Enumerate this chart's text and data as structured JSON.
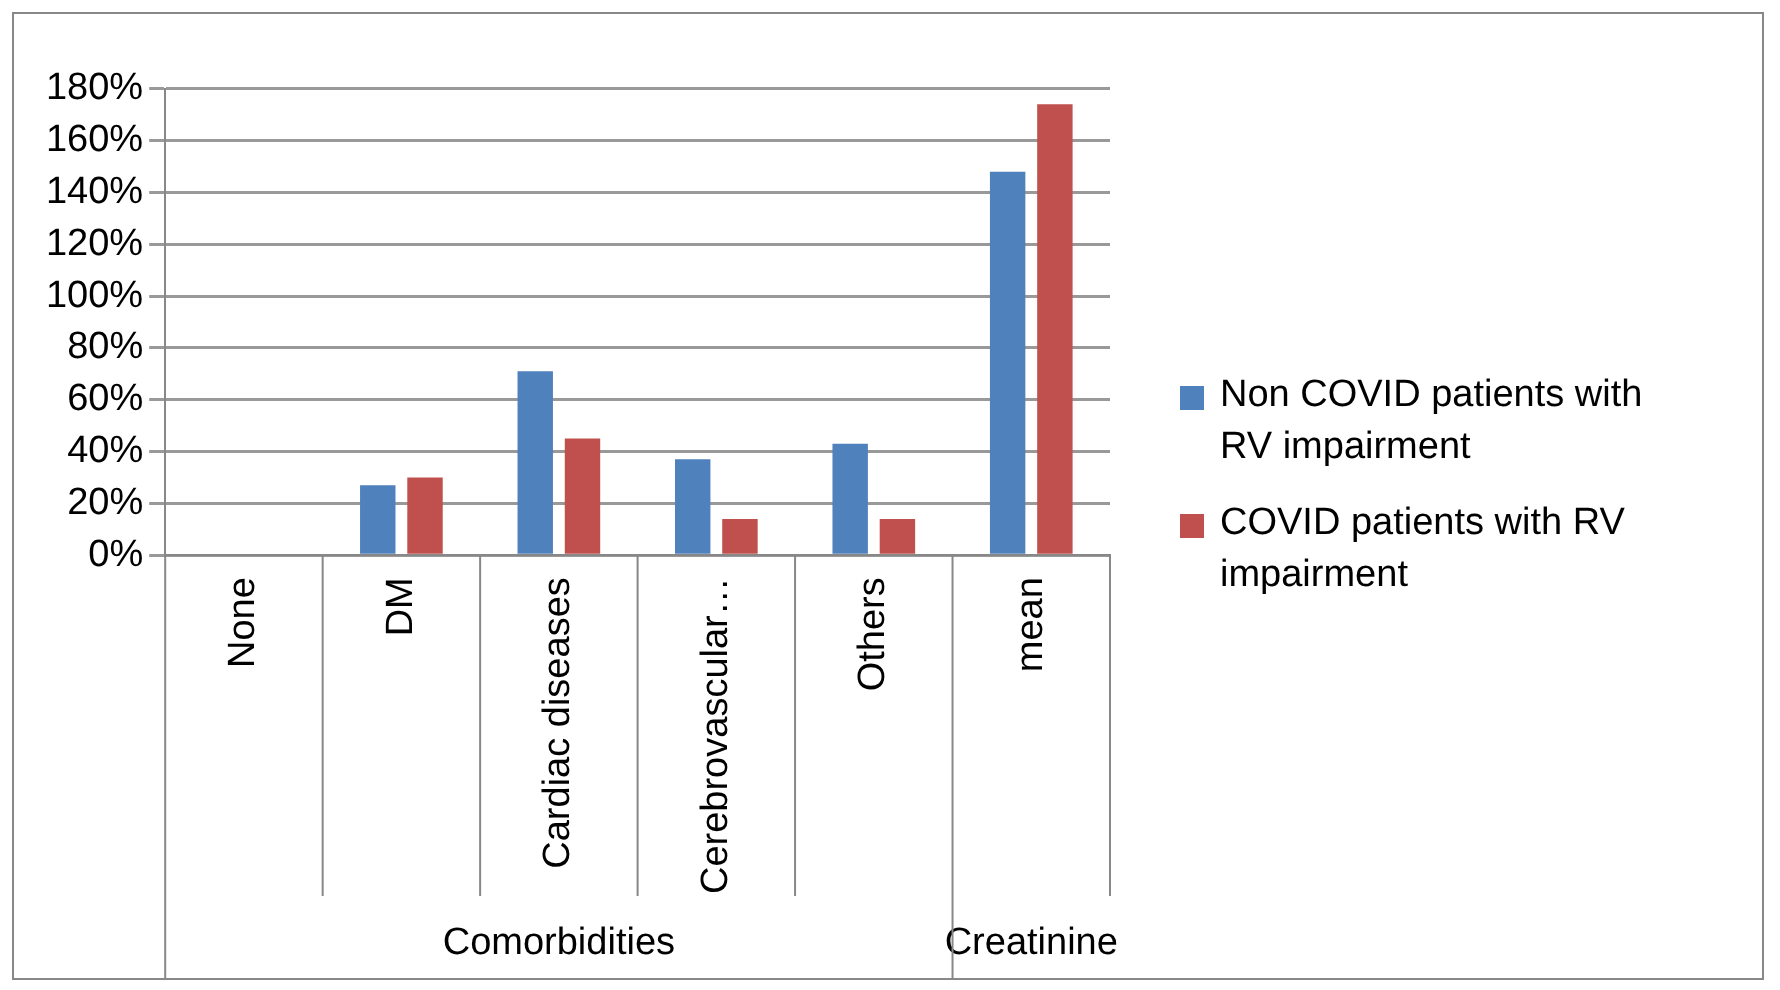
{
  "chart_data": {
    "type": "bar",
    "categories": [
      "None",
      "DM",
      "Cardiac diseases",
      "Cerebrovascular…",
      "Others",
      "mean"
    ],
    "series": [
      {
        "name": "Non COVID patients with RV impairment",
        "color": "#4f81bd",
        "values": [
          0,
          27,
          71,
          37,
          43,
          148
        ]
      },
      {
        "name": "COVID patients with RV impairment",
        "color": "#c0504d",
        "values": [
          0,
          30,
          45,
          14,
          14,
          174
        ]
      }
    ],
    "ylim": [
      0,
      180
    ],
    "yticks": [
      {
        "value": 0,
        "label": "0%"
      },
      {
        "value": 20,
        "label": "20%"
      },
      {
        "value": 40,
        "label": "40%"
      },
      {
        "value": 60,
        "label": "60%"
      },
      {
        "value": 80,
        "label": "80%"
      },
      {
        "value": 100,
        "label": "100%"
      },
      {
        "value": 120,
        "label": "120%"
      },
      {
        "value": 140,
        "label": "140%"
      },
      {
        "value": 160,
        "label": "160%"
      },
      {
        "value": 180,
        "label": "180%"
      }
    ],
    "grid": "y",
    "legend": "right",
    "annotations": [
      "Comorbidities",
      "Creatinine"
    ]
  }
}
